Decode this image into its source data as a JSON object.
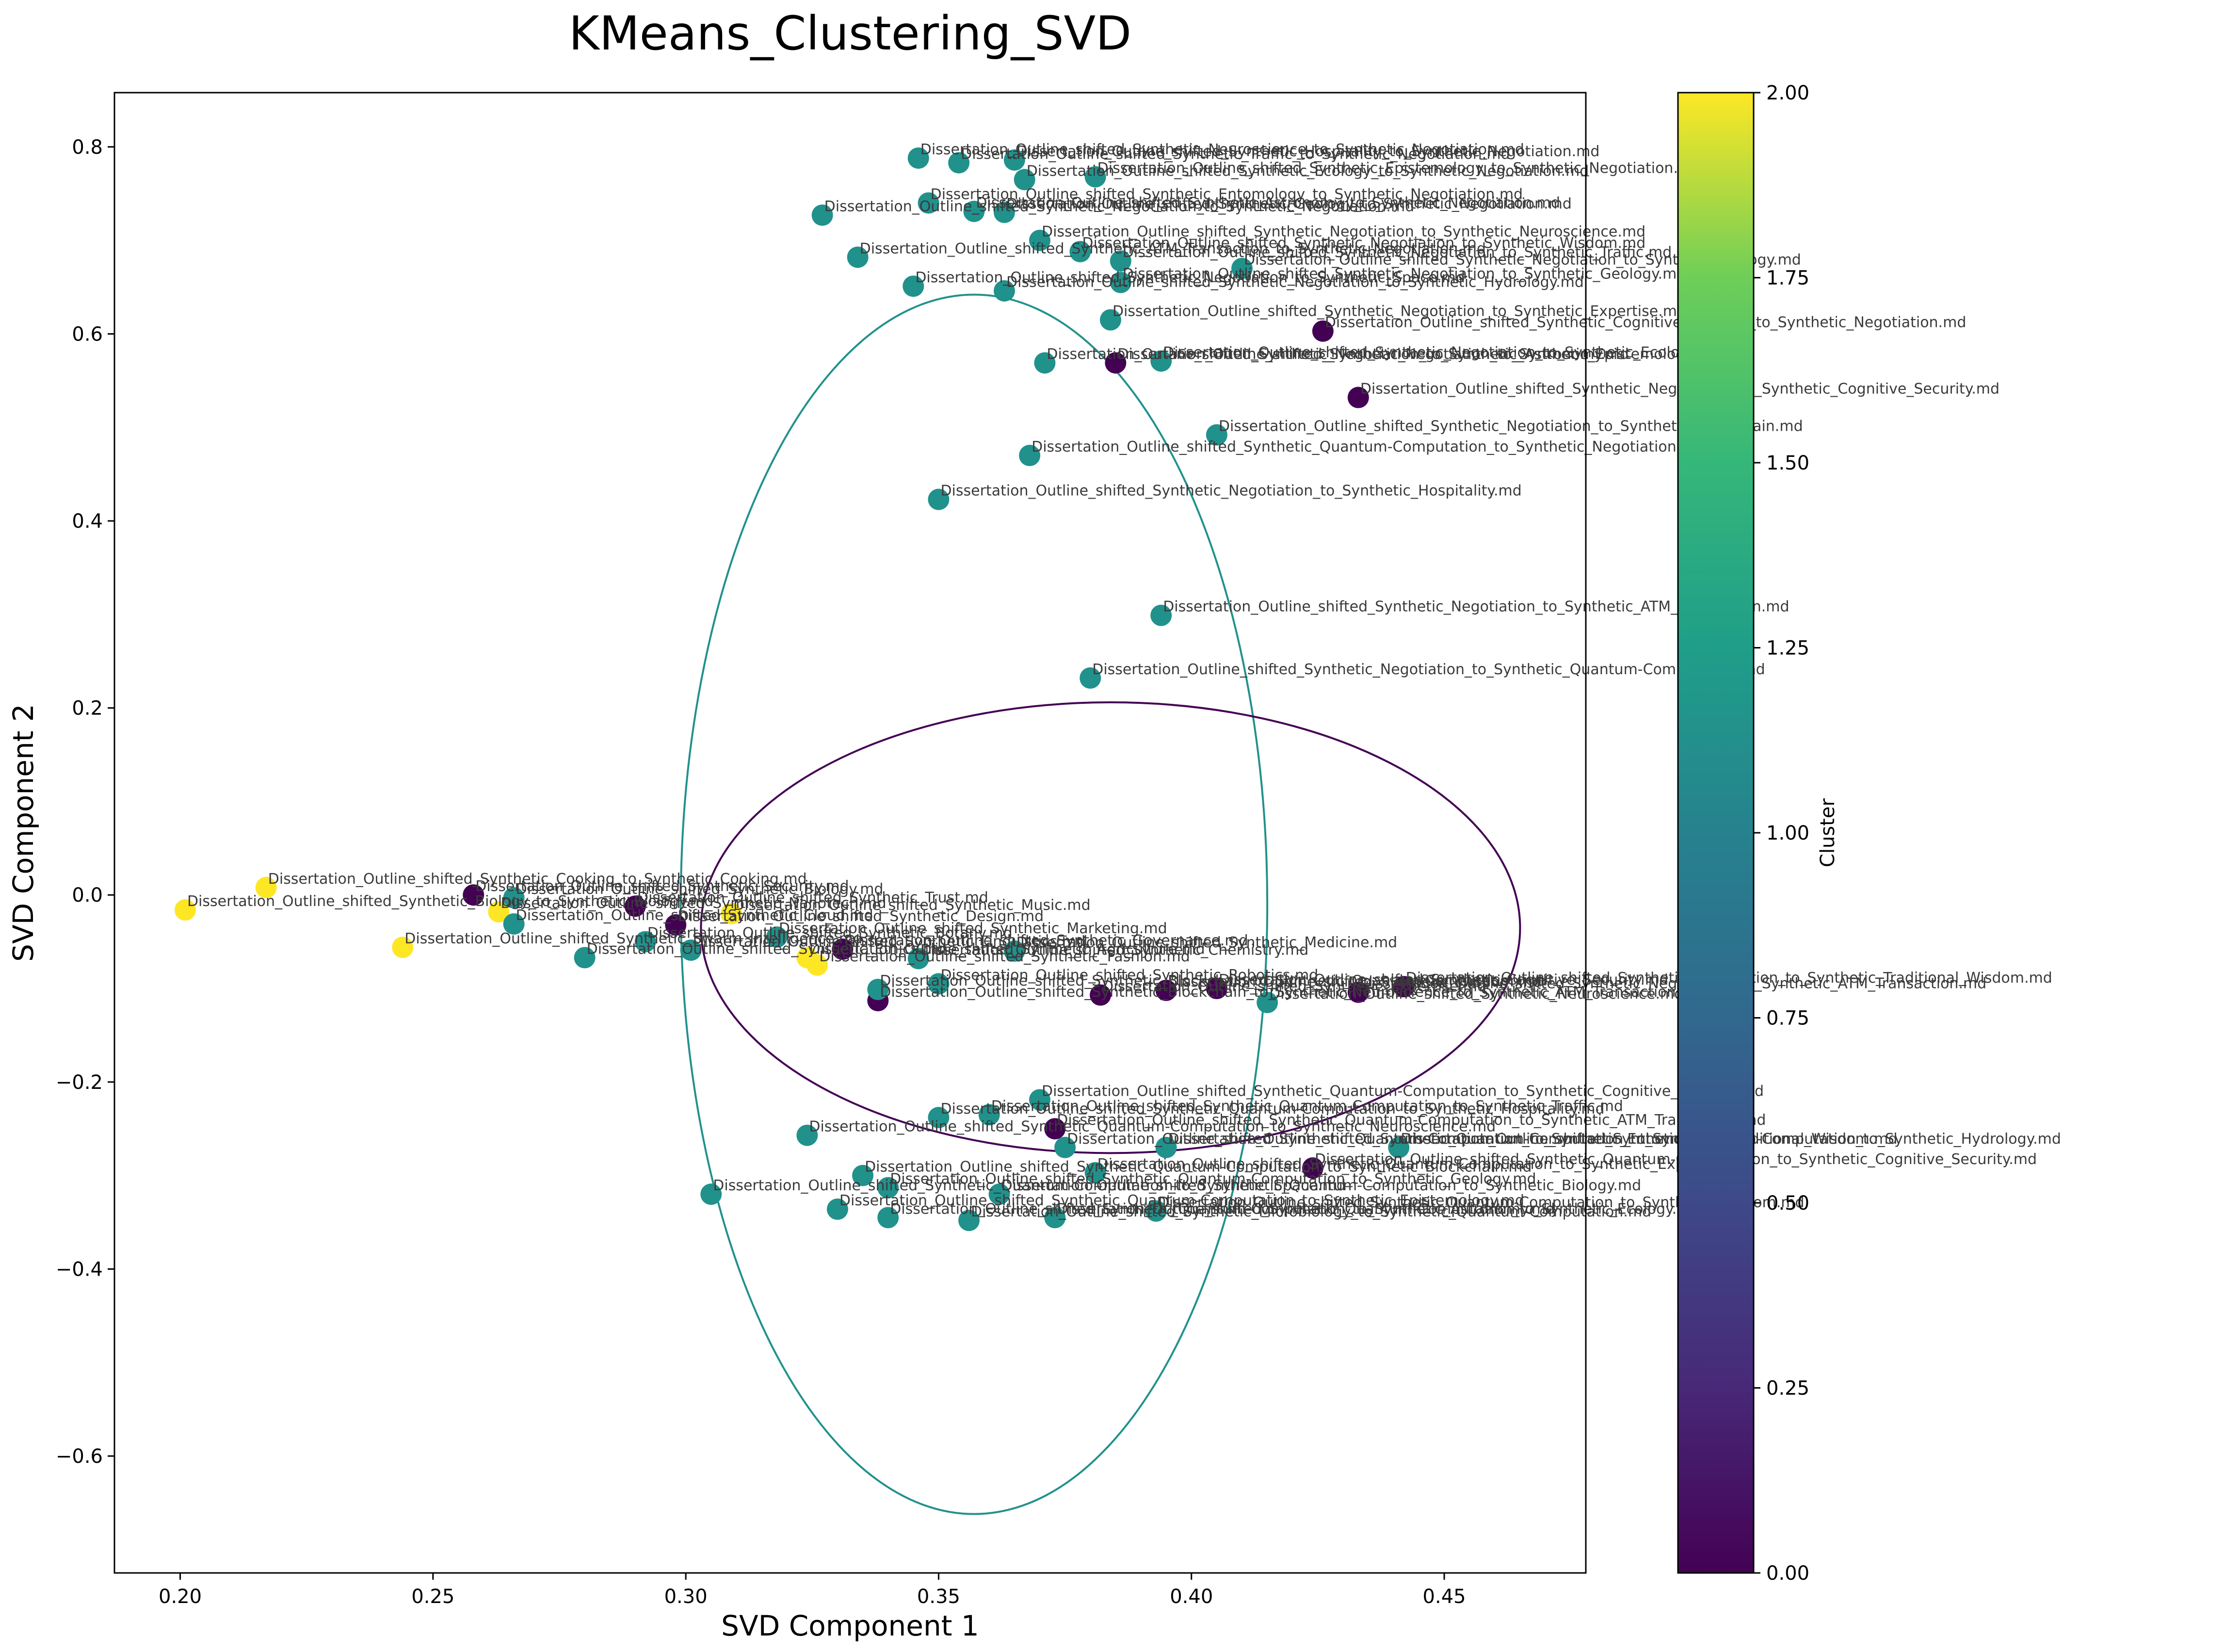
{
  "chart_data": {
    "type": "scatter",
    "title": "KMeans_Clustering_SVD",
    "xlabel": "SVD Component 1",
    "ylabel": "SVD Component 2",
    "xlim": [
      0.187,
      0.478
    ],
    "ylim": [
      -0.725,
      0.858
    ],
    "x_ticks": [
      0.2,
      0.25,
      0.3,
      0.35,
      0.4,
      0.45
    ],
    "x_tick_labels": [
      "0.20",
      "0.25",
      "0.30",
      "0.35",
      "0.40",
      "0.45"
    ],
    "y_ticks": [
      -0.6,
      -0.4,
      -0.2,
      0.0,
      0.2,
      0.4,
      0.6,
      0.8
    ],
    "y_tick_labels": [
      "−0.6",
      "−0.4",
      "−0.2",
      "0.0",
      "0.2",
      "0.4",
      "0.6",
      "0.8"
    ],
    "grid": false,
    "colormap": "viridis",
    "cluster_colors": {
      "0": "#440154",
      "1": "#21918c",
      "2": "#fde725"
    },
    "colorbar": {
      "label": "Cluster",
      "range": [
        0.0,
        2.0
      ],
      "ticks": [
        0.0,
        0.25,
        0.5,
        0.75,
        1.0,
        1.25,
        1.5,
        1.75,
        2.0
      ],
      "tick_labels": [
        "0.00",
        "0.25",
        "0.50",
        "0.75",
        "1.00",
        "1.25",
        "1.50",
        "1.75",
        "2.00"
      ]
    },
    "ellipses": [
      {
        "cluster": 1,
        "center": [
          0.357,
          -0.01
        ],
        "half_width": 0.058,
        "half_height": 0.652
      },
      {
        "cluster": 0,
        "center": [
          0.384,
          -0.035
        ],
        "half_width": 0.081,
        "half_height": 0.241
      }
    ],
    "points": [
      {
        "x": 0.217,
        "y": 0.008,
        "cluster": 2,
        "label": "Dissertation_Outline_shifted_Synthetic_Cooking_to_Synthetic_Cooking.md"
      },
      {
        "x": 0.201,
        "y": -0.016,
        "cluster": 2,
        "label": "Dissertation_Outline_shifted_Synthetic_Biology_to_Synthetic_Biology.md"
      },
      {
        "x": 0.244,
        "y": -0.056,
        "cluster": 2,
        "label": "Dissertation_Outline_shifted_Synthetic_Swarm_Intelligence.md"
      },
      {
        "x": 0.258,
        "y": 0.0,
        "cluster": 0,
        "label": "Dissertation_Outline_shifted_Synthetic_Security.md"
      },
      {
        "x": 0.263,
        "y": -0.018,
        "cluster": 2,
        "label": "Dissertation_Outline_shifted_Synthetic_Nanotech.md"
      },
      {
        "x": 0.266,
        "y": -0.031,
        "cluster": 1,
        "label": "Dissertation_Outline_shifted_Synthetic_Cloud.md"
      },
      {
        "x": 0.266,
        "y": -0.003,
        "cluster": 1,
        "label": "Dissertation_Outline_shifted_Synthetic_Biology.md"
      },
      {
        "x": 0.28,
        "y": -0.067,
        "cluster": 1,
        "label": "Dissertation_Outline_shifted_Synthetic_Ethics.md"
      },
      {
        "x": 0.29,
        "y": -0.012,
        "cluster": 0,
        "label": "Dissertation_Outline_shifted_Synthetic_Trust.md"
      },
      {
        "x": 0.292,
        "y": -0.05,
        "cluster": 1,
        "label": "Dissertation_Outline_shifted_Synthetic_Botany.md"
      },
      {
        "x": 0.298,
        "y": -0.032,
        "cluster": 0,
        "label": "Dissertation_Outline_shifted_Synthetic_Design.md"
      },
      {
        "x": 0.301,
        "y": -0.059,
        "cluster": 1,
        "label": "Dissertation_Outline_shifted_Synthetic_Linguistics.md"
      },
      {
        "x": 0.309,
        "y": -0.02,
        "cluster": 2,
        "label": "Dissertation_Outline_shifted_Synthetic_Music.md"
      },
      {
        "x": 0.318,
        "y": -0.045,
        "cluster": 1,
        "label": "Dissertation_Outline_shifted_Synthetic_Marketing.md"
      },
      {
        "x": 0.324,
        "y": -0.067,
        "cluster": 2,
        "label": "Dissertation_Outline_shifted_Synthetic_Agriculture.md"
      },
      {
        "x": 0.326,
        "y": -0.075,
        "cluster": 2,
        "label": "Dissertation_Outline_shifted_Synthetic_Fashion.md"
      },
      {
        "x": 0.331,
        "y": -0.058,
        "cluster": 0,
        "label": "Dissertation_Outline_shifted_Synthetic_Governance.md"
      },
      {
        "x": 0.338,
        "y": -0.113,
        "cluster": 0,
        "label": "Dissertation_Outline_shifted_Synthetic_Blockchain_to_Synthetic_Neuroscience_to_Synthetic_ATM_Transaction.md"
      },
      {
        "x": 0.338,
        "y": -0.101,
        "cluster": 1,
        "label": "Dissertation_Outline_shifted_Synthetic_Blockchain_to_Synthetic_Quantum-Computation.md"
      },
      {
        "x": 0.346,
        "y": -0.068,
        "cluster": 1,
        "label": "Dissertation_Outline_shifted_Synthetic_Chemistry.md"
      },
      {
        "x": 0.35,
        "y": -0.095,
        "cluster": 1,
        "label": "Dissertation_Outline_shifted_Synthetic_Robotics.md"
      },
      {
        "x": 0.365,
        "y": -0.06,
        "cluster": 1,
        "label": "Dissertation_Outline_shifted_Synthetic_Medicine.md"
      },
      {
        "x": 0.382,
        "y": -0.107,
        "cluster": 0,
        "label": "Dissertation_Outline_shifted_Synthetic_Expertise.md"
      },
      {
        "x": 0.395,
        "y": -0.102,
        "cluster": 0,
        "label": "Dissertation_Outline_shifted_Synthetic_Wisdom.md"
      },
      {
        "x": 0.405,
        "y": -0.1,
        "cluster": 0,
        "label": "Dissertation_Outline_shifted_Synthetic_Cognitive_Security.md"
      },
      {
        "x": 0.415,
        "y": -0.115,
        "cluster": 1,
        "label": "Dissertation_Outline_shifted_Synthetic_Neuroscience.md"
      },
      {
        "x": 0.433,
        "y": -0.104,
        "cluster": 0,
        "label": "Dissertation_Outline_shifted_Synthetic_Negotiation_to_Synthetic_ATM_Transaction.md"
      },
      {
        "x": 0.442,
        "y": -0.098,
        "cluster": 0,
        "label": "Dissertation_Outline_shifted_Synthetic_Negotiation_to_Synthetic_Traditional_Wisdom.md"
      },
      {
        "x": 0.346,
        "y": 0.788,
        "cluster": 1,
        "label": "Dissertation_Outline_shifted_Synthetic_Neuroscience_to_Synthetic_Negotiation.md"
      },
      {
        "x": 0.354,
        "y": 0.783,
        "cluster": 1,
        "label": "Dissertation_Outline_shifted_Synthetic_Traffic_to_Synthetic_Negotiation.md"
      },
      {
        "x": 0.365,
        "y": 0.786,
        "cluster": 1,
        "label": "Dissertation_Outline_shifted_Synthetic_Hospitality_to_Synthetic_Negotiation.md"
      },
      {
        "x": 0.367,
        "y": 0.765,
        "cluster": 1,
        "label": "Dissertation_Outline_shifted_Synthetic_Ecology_to_Synthetic_Negotiation.md"
      },
      {
        "x": 0.381,
        "y": 0.768,
        "cluster": 1,
        "label": "Dissertation_Outline_shifted_Synthetic_Epistemology_to_Synthetic_Negotiation.md"
      },
      {
        "x": 0.348,
        "y": 0.74,
        "cluster": 1,
        "label": "Dissertation_Outline_shifted_Synthetic_Entomology_to_Synthetic_Negotiation.md"
      },
      {
        "x": 0.327,
        "y": 0.727,
        "cluster": 1,
        "label": "Dissertation_Outline_shifted_Synthetic_Negotiation_to_Synthetic_Negotiation.md"
      },
      {
        "x": 0.357,
        "y": 0.731,
        "cluster": 1,
        "label": "Dissertation_Outline_shifted_Synthetic_Astronomy_to_Synthetic_Negotiation.md"
      },
      {
        "x": 0.363,
        "y": 0.73,
        "cluster": 1,
        "label": "Dissertation_Outline_shifted_Synthetic_Geology_to_Synthetic_Negotiation.md"
      },
      {
        "x": 0.37,
        "y": 0.7,
        "cluster": 1,
        "label": "Dissertation_Outline_shifted_Synthetic_Negotiation_to_Synthetic_Neuroscience.md"
      },
      {
        "x": 0.334,
        "y": 0.682,
        "cluster": 1,
        "label": "Dissertation_Outline_shifted_Synthetic_ATM_Transaction_to_Synthetic_Negotiation.md"
      },
      {
        "x": 0.378,
        "y": 0.688,
        "cluster": 1,
        "label": "Dissertation_Outline_shifted_Synthetic_Negotiation_to_Synthetic_Wisdom.md"
      },
      {
        "x": 0.386,
        "y": 0.678,
        "cluster": 1,
        "label": "Dissertation_Outline_shifted_Synthetic_Negotiation_to_Synthetic_Traffic.md"
      },
      {
        "x": 0.41,
        "y": 0.67,
        "cluster": 1,
        "label": "Dissertation_Outline_shifted_Synthetic_Negotiation_to_Synthetic_Biology.md"
      },
      {
        "x": 0.345,
        "y": 0.651,
        "cluster": 1,
        "label": "Dissertation_Outline_shifted_Synthetic_Negotiation_to_Synthetic_Space.md"
      },
      {
        "x": 0.363,
        "y": 0.646,
        "cluster": 1,
        "label": "Dissertation_Outline_shifted_Synthetic_Negotiation_to_Synthetic_Hydrology.md"
      },
      {
        "x": 0.386,
        "y": 0.655,
        "cluster": 1,
        "label": "Dissertation_Outline_shifted_Synthetic_Negotiation_to_Synthetic_Geology.md"
      },
      {
        "x": 0.384,
        "y": 0.615,
        "cluster": 1,
        "label": "Dissertation_Outline_shifted_Synthetic_Negotiation_to_Synthetic_Expertise.md"
      },
      {
        "x": 0.426,
        "y": 0.603,
        "cluster": 0,
        "label": "Dissertation_Outline_shifted_Synthetic_Cognitive_Security_to_Synthetic_Negotiation.md"
      },
      {
        "x": 0.371,
        "y": 0.569,
        "cluster": 1,
        "label": "Dissertation_Outline_shifted_Synthetic_Negotiation_to_Synthetic_Astronomy.md"
      },
      {
        "x": 0.385,
        "y": 0.569,
        "cluster": 0,
        "label": "Dissertation_Outline_shifted_Synthetic_Negotiation_to_Synthetic_Epistemology.md"
      },
      {
        "x": 0.394,
        "y": 0.571,
        "cluster": 1,
        "label": "Dissertation_Outline_shifted_Synthetic_Negotiation_to_Synthetic_Ecology.md"
      },
      {
        "x": 0.433,
        "y": 0.532,
        "cluster": 0,
        "label": "Dissertation_Outline_shifted_Synthetic_Negotiation_to_Synthetic_Cognitive_Security.md"
      },
      {
        "x": 0.405,
        "y": 0.492,
        "cluster": 1,
        "label": "Dissertation_Outline_shifted_Synthetic_Negotiation_to_Synthetic_Blockchain.md"
      },
      {
        "x": 0.368,
        "y": 0.47,
        "cluster": 1,
        "label": "Dissertation_Outline_shifted_Synthetic_Quantum-Computation_to_Synthetic_Negotiation.md"
      },
      {
        "x": 0.35,
        "y": 0.423,
        "cluster": 1,
        "label": "Dissertation_Outline_shifted_Synthetic_Negotiation_to_Synthetic_Hospitality.md"
      },
      {
        "x": 0.394,
        "y": 0.299,
        "cluster": 1,
        "label": "Dissertation_Outline_shifted_Synthetic_Negotiation_to_Synthetic_ATM_Transaction.md"
      },
      {
        "x": 0.38,
        "y": 0.232,
        "cluster": 1,
        "label": "Dissertation_Outline_shifted_Synthetic_Negotiation_to_Synthetic_Quantum-Computation.md"
      },
      {
        "x": 0.37,
        "y": -0.219,
        "cluster": 1,
        "label": "Dissertation_Outline_shifted_Synthetic_Quantum-Computation_to_Synthetic_Cognitive_Security.md"
      },
      {
        "x": 0.35,
        "y": -0.238,
        "cluster": 1,
        "label": "Dissertation_Outline_shifted_Synthetic_Quantum-Computation_to_Synthetic_Hospitality.md"
      },
      {
        "x": 0.36,
        "y": -0.235,
        "cluster": 1,
        "label": "Dissertation_Outline_shifted_Synthetic_Quantum-Computation_to_Synthetic_Traffic.md"
      },
      {
        "x": 0.373,
        "y": -0.25,
        "cluster": 0,
        "label": "Dissertation_Outline_shifted_Synthetic_Quantum-Computation_to_Synthetic_ATM_Transaction.md"
      },
      {
        "x": 0.324,
        "y": -0.257,
        "cluster": 1,
        "label": "Dissertation_Outline_shifted_Synthetic_Quantum-Computation_to_Synthetic_Neuroscience.md"
      },
      {
        "x": 0.375,
        "y": -0.27,
        "cluster": 1,
        "label": "Dissertation_Outline_shifted_Synthetic_Quantum-Computation_to_Synthetic_Entomology.md"
      },
      {
        "x": 0.395,
        "y": -0.27,
        "cluster": 1,
        "label": "Dissertation_Outline_shifted_Synthetic_Quantum-Computation_to_Synthetic_Traditional_Wisdom.md"
      },
      {
        "x": 0.441,
        "y": -0.27,
        "cluster": 1,
        "label": "Dissertation_Outline_shifted_Synthetic_Quantum-Computation_to_Synthetic_Hydrology.md"
      },
      {
        "x": 0.424,
        "y": -0.292,
        "cluster": 0,
        "label": "Dissertation_Outline_shifted_Synthetic_Quantum-Computation_to_Synthetic_Cognitive_Security.md"
      },
      {
        "x": 0.335,
        "y": -0.3,
        "cluster": 1,
        "label": "Dissertation_Outline_shifted_Synthetic_Quantum-Computation_to_Synthetic_Blockchain.md"
      },
      {
        "x": 0.381,
        "y": -0.297,
        "cluster": 1,
        "label": "Dissertation_Outline_shifted_Synthetic_Quantum-Computation_to_Synthetic_Expertise.md"
      },
      {
        "x": 0.305,
        "y": -0.32,
        "cluster": 1,
        "label": "Dissertation_Outline_shifted_Synthetic_Quantum-Computation_to_Synthetic_Space.md"
      },
      {
        "x": 0.34,
        "y": -0.313,
        "cluster": 1,
        "label": "Dissertation_Outline_shifted_Synthetic_Quantum-Computation_to_Synthetic_Geology.md"
      },
      {
        "x": 0.362,
        "y": -0.32,
        "cluster": 1,
        "label": "Dissertation_Outline_shifted_Synthetic_Quantum-Computation_to_Synthetic_Biology.md"
      },
      {
        "x": 0.33,
        "y": -0.336,
        "cluster": 1,
        "label": "Dissertation_Outline_shifted_Synthetic_Quantum-Computation_to_Synthetic_Epistemology.md"
      },
      {
        "x": 0.34,
        "y": -0.345,
        "cluster": 1,
        "label": "Dissertation_Outline_shifted_Synthetic_Quantum-Computation_to_Synthetic_Astronomy.md"
      },
      {
        "x": 0.356,
        "y": -0.348,
        "cluster": 1,
        "label": "Dissertation_Outline_shifted_Synthetic_Microbiology_to_Synthetic_Quantum-Computation.md"
      },
      {
        "x": 0.373,
        "y": -0.345,
        "cluster": 1,
        "label": "Dissertation_Outline_shifted_Synthetic_Quantum-Computation_to_Synthetic_Ecology.md"
      },
      {
        "x": 0.393,
        "y": -0.338,
        "cluster": 1,
        "label": "Dissertation_Outline_shifted_Synthetic_Quantum-Computation_to_Synthetic_Wisdom.md"
      }
    ]
  }
}
